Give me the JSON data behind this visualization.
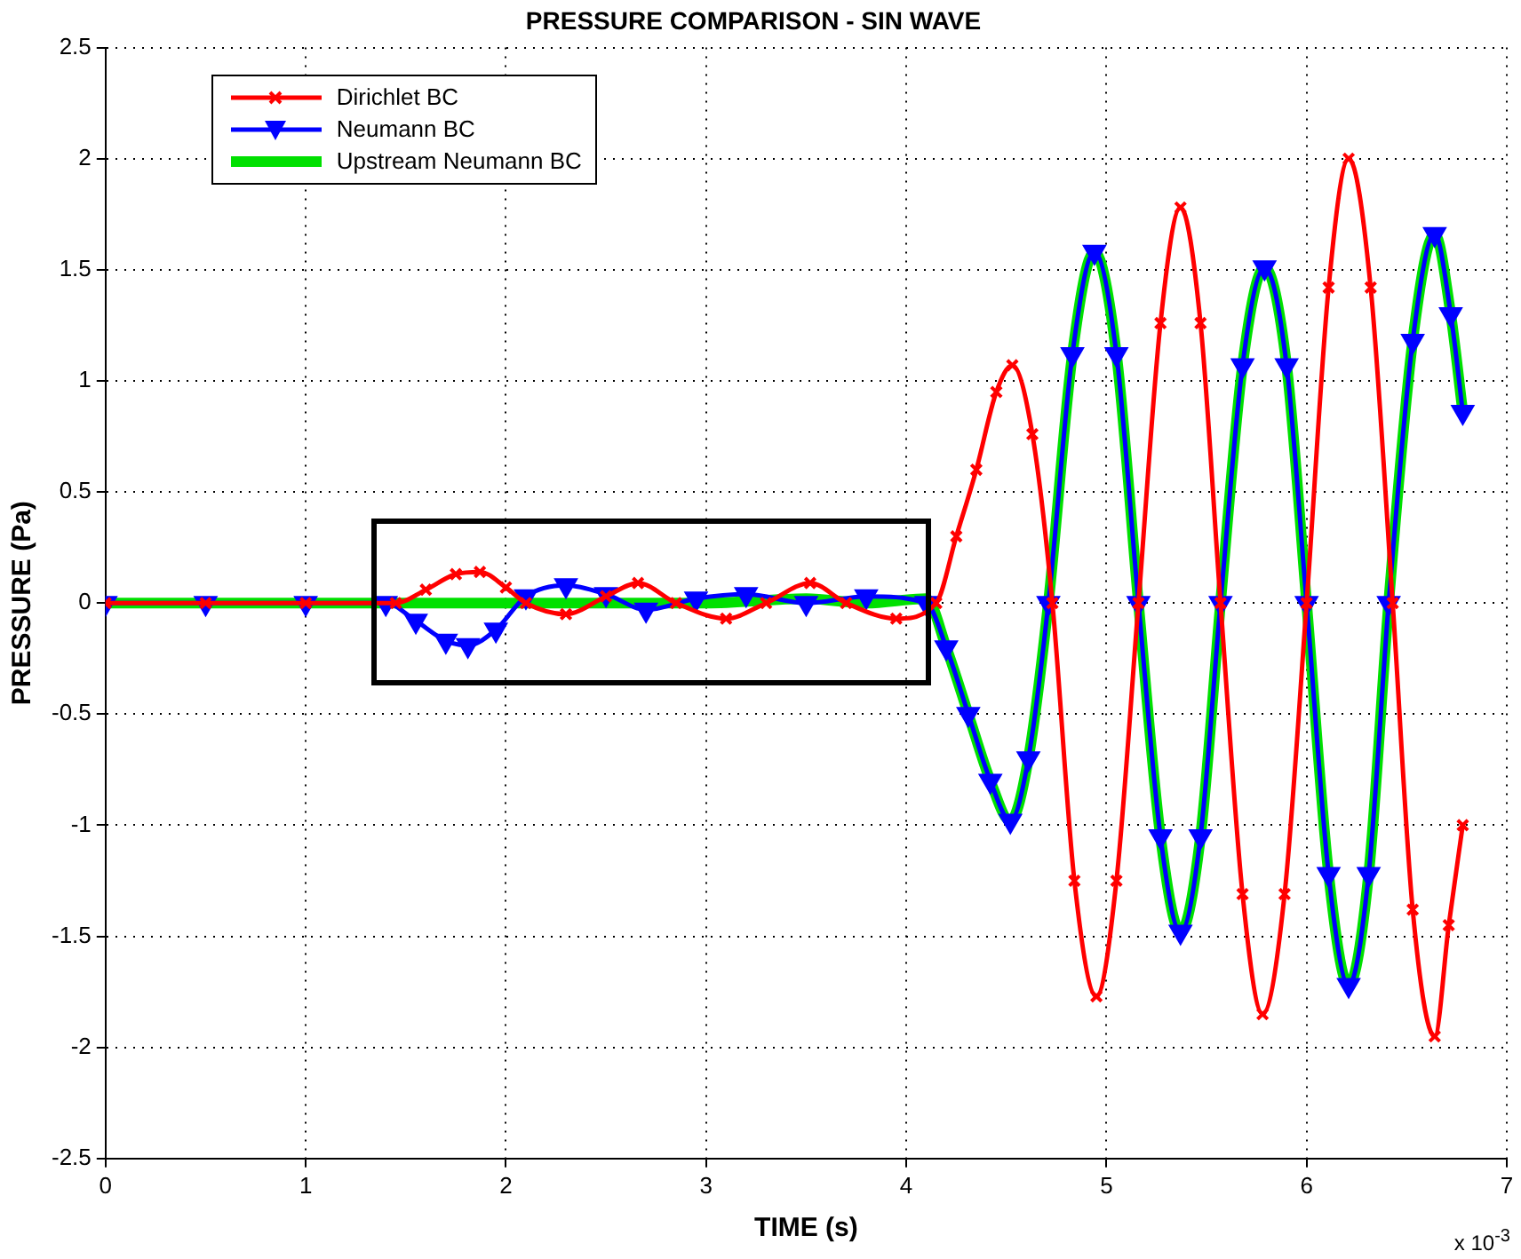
{
  "chart_data": {
    "type": "line",
    "title": "PRESSURE COMPARISON - SIN WAVE",
    "xlabel": "TIME (s)",
    "ylabel": "PRESSURE (Pa)",
    "annotations": [
      "x 10$^{-3}$"
    ],
    "xlim": [
      0,
      7
    ],
    "xticks": [
      0,
      1,
      2,
      3,
      4,
      5,
      6,
      7
    ],
    "ylim": [
      -2.5,
      2.5
    ],
    "yticks": [
      -2.5,
      -2,
      -1.5,
      -1,
      -0.5,
      0,
      0.5,
      1,
      1.5,
      2,
      2.5
    ],
    "grid": true,
    "legend": "top left",
    "line_style": "solid",
    "series": [
      {
        "name": "Dirichlet BC",
        "color": "#ff0000",
        "marker": "cross",
        "x": [
          0,
          0.5,
          1,
          1.45,
          1.6,
          1.75,
          1.87,
          2.0,
          2.1,
          2.3,
          2.5,
          2.66,
          2.85,
          3.1,
          3.3,
          3.52,
          3.7,
          3.95,
          4.15,
          4.25,
          4.35,
          4.45,
          4.53,
          4.63,
          4.73,
          4.84,
          4.95,
          5.05,
          5.16,
          5.27,
          5.37,
          5.47,
          5.57,
          5.68,
          5.78,
          5.89,
          6.0,
          6.11,
          6.21,
          6.32,
          6.43,
          6.53,
          6.64,
          6.71,
          6.78
        ],
        "values": [
          0,
          0,
          0,
          0,
          0.06,
          0.13,
          0.14,
          0.07,
          0,
          -0.05,
          0.03,
          0.09,
          0,
          -0.07,
          0,
          0.09,
          0,
          -0.07,
          0,
          0.3,
          0.6,
          0.95,
          1.07,
          0.76,
          0,
          -1.25,
          -1.77,
          -1.25,
          0,
          1.26,
          1.78,
          1.26,
          0,
          -1.31,
          -1.85,
          -1.31,
          0,
          1.42,
          2.0,
          1.42,
          0,
          -1.38,
          -1.95,
          -1.45,
          -1.0
        ]
      },
      {
        "name": "Neumann BC",
        "color": "#0000ff",
        "marker": "triangle",
        "x": [
          0,
          0.5,
          1,
          1.4,
          1.55,
          1.7,
          1.81,
          1.95,
          2.1,
          2.3,
          2.5,
          2.7,
          2.95,
          3.2,
          3.5,
          3.8,
          4.1,
          4.2,
          4.31,
          4.42,
          4.52,
          4.61,
          4.71,
          4.83,
          4.94,
          5.05,
          5.16,
          5.27,
          5.37,
          5.47,
          5.57,
          5.68,
          5.79,
          5.9,
          6.0,
          6.11,
          6.21,
          6.31,
          6.41,
          6.53,
          6.64,
          6.72,
          6.78
        ],
        "values": [
          0,
          0,
          0,
          0,
          -0.08,
          -0.17,
          -0.19,
          -0.12,
          0.03,
          0.08,
          0.04,
          -0.03,
          0.02,
          0.04,
          0,
          0.03,
          0,
          -0.2,
          -0.5,
          -0.8,
          -0.98,
          -0.7,
          0,
          1.12,
          1.58,
          1.12,
          0,
          -1.05,
          -1.48,
          -1.05,
          0,
          1.07,
          1.51,
          1.07,
          0,
          -1.22,
          -1.72,
          -1.22,
          0,
          1.18,
          1.66,
          1.3,
          0.86
        ]
      },
      {
        "name": "Upstream Neumann BC",
        "color": "#00e000",
        "marker": "none",
        "x": [
          0,
          1,
          2,
          3,
          3.5,
          3.8,
          4.1,
          4.2,
          4.31,
          4.42,
          4.52,
          4.61,
          4.71,
          4.83,
          4.94,
          5.05,
          5.16,
          5.27,
          5.37,
          5.47,
          5.57,
          5.68,
          5.79,
          5.9,
          6.0,
          6.11,
          6.21,
          6.31,
          6.41,
          6.53,
          6.64,
          6.72,
          6.78
        ],
        "values": [
          0,
          0,
          0,
          0,
          0.02,
          0,
          0.02,
          -0.2,
          -0.5,
          -0.8,
          -0.98,
          -0.7,
          0,
          1.12,
          1.58,
          1.12,
          0,
          -1.05,
          -1.48,
          -1.05,
          0,
          1.07,
          1.51,
          1.07,
          0,
          -1.22,
          -1.72,
          -1.22,
          0,
          1.18,
          1.66,
          1.3,
          0.86
        ]
      }
    ]
  }
}
